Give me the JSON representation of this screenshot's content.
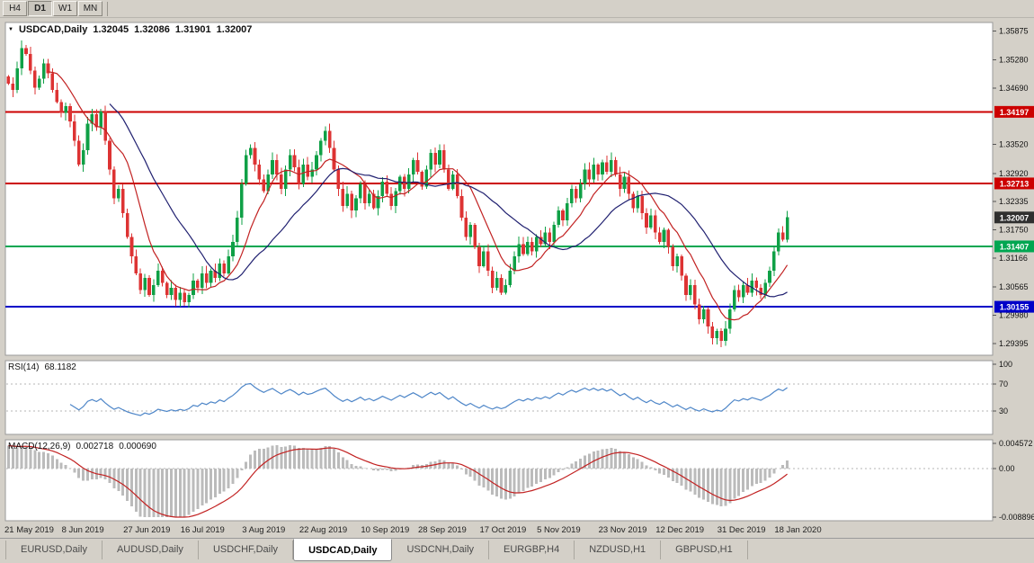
{
  "toolbar": {
    "buttons": [
      {
        "label": "H4",
        "active": false
      },
      {
        "label": "D1",
        "active": true
      },
      {
        "label": "W1",
        "active": false
      },
      {
        "label": "MN",
        "active": false
      }
    ]
  },
  "chart": {
    "symbol_title": "USDCAD,Daily",
    "quote": {
      "open": "1.32045",
      "high": "1.32086",
      "low": "1.31901",
      "close": "1.32007"
    }
  },
  "rsi_panel": {
    "name": "RSI(14)",
    "value": "68.1182"
  },
  "macd_panel": {
    "name": "MACD(12,26,9)",
    "value_main": "0.002718",
    "value_signal": "0.000690"
  },
  "tabs": [
    {
      "label": "EURUSD,Daily",
      "active": false
    },
    {
      "label": "AUDUSD,Daily",
      "active": false
    },
    {
      "label": "USDCHF,Daily",
      "active": false
    },
    {
      "label": "USDCAD,Daily",
      "active": true
    },
    {
      "label": "USDCNH,Daily",
      "active": false
    },
    {
      "label": "EURGBP,H4",
      "active": false
    },
    {
      "label": "NZDUSD,H1",
      "active": false
    },
    {
      "label": "GBPUSD,H1",
      "active": false
    }
  ],
  "chart_data": {
    "type": "candlestick",
    "symbol": "USDCAD",
    "timeframe": "Daily",
    "title": "USDCAD,Daily 1.32045 1.32086 1.31901 1.32007",
    "x_axis": {
      "labels": [
        "21 May 2019",
        "8 Jun 2019",
        "27 Jun 2019",
        "16 Jul 2019",
        "3 Aug 2019",
        "22 Aug 2019",
        "10 Sep 2019",
        "28 Sep 2019",
        "17 Oct 2019",
        "5 Nov 2019",
        "23 Nov 2019",
        "12 Dec 2019",
        "31 Dec 2019",
        "18 Jan 2020"
      ],
      "indices": [
        0,
        13,
        27,
        40,
        54,
        67,
        81,
        94,
        108,
        121,
        135,
        148,
        162,
        175
      ]
    },
    "price_axis": {
      "max": 1.3605,
      "min": 1.2915,
      "ticks": [
        "1.35875",
        "1.35280",
        "1.34690",
        "1.33520",
        "1.32920",
        "1.32335",
        "1.31750",
        "1.31166",
        "1.30565",
        "1.29980",
        "1.29395"
      ]
    },
    "levels": [
      {
        "label": "1.34197",
        "price": 1.34197,
        "color": "#cc0000",
        "type": "resistance"
      },
      {
        "label": "1.32713",
        "price": 1.32713,
        "color": "#cc0000",
        "type": "resistance"
      },
      {
        "label": "1.31407",
        "price": 1.31407,
        "color": "#00a651",
        "type": "support"
      },
      {
        "label": "1.30155",
        "price": 1.30155,
        "color": "#0000c8",
        "type": "support"
      }
    ],
    "current_price": {
      "label": "1.32007",
      "price": 1.32007,
      "box_color": "#2f2f2f"
    },
    "candles": {
      "count": 178,
      "plot_right": 878,
      "closes": [
        1.3478,
        1.3465,
        1.351,
        1.3552,
        1.354,
        1.3505,
        1.347,
        1.3488,
        1.352,
        1.35,
        1.3465,
        1.344,
        1.3418,
        1.3432,
        1.34,
        1.336,
        1.331,
        1.334,
        1.3395,
        1.3415,
        1.3388,
        1.342,
        1.336,
        1.33,
        1.324,
        1.326,
        1.321,
        1.316,
        1.312,
        1.3085,
        1.305,
        1.3075,
        1.304,
        1.306,
        1.309,
        1.3065,
        1.304,
        1.3055,
        1.303,
        1.3045,
        1.3025,
        1.304,
        1.307,
        1.3055,
        1.3085,
        1.3065,
        1.309,
        1.3075,
        1.3105,
        1.3085,
        1.312,
        1.315,
        1.32,
        1.327,
        1.333,
        1.3345,
        1.331,
        1.328,
        1.3255,
        1.329,
        1.332,
        1.329,
        1.326,
        1.33,
        1.333,
        1.3305,
        1.327,
        1.331,
        1.3285,
        1.33,
        1.333,
        1.336,
        1.338,
        1.3345,
        1.33,
        1.326,
        1.3225,
        1.325,
        1.3215,
        1.324,
        1.327,
        1.323,
        1.325,
        1.322,
        1.3245,
        1.3275,
        1.325,
        1.3225,
        1.3255,
        1.3285,
        1.326,
        1.329,
        1.332,
        1.3295,
        1.3265,
        1.33,
        1.3335,
        1.331,
        1.334,
        1.33,
        1.326,
        1.329,
        1.3245,
        1.32,
        1.316,
        1.3185,
        1.314,
        1.31,
        1.313,
        1.309,
        1.3055,
        1.3075,
        1.3045,
        1.306,
        1.309,
        1.312,
        1.3145,
        1.3125,
        1.315,
        1.313,
        1.316,
        1.3145,
        1.317,
        1.315,
        1.3185,
        1.3215,
        1.3195,
        1.323,
        1.326,
        1.324,
        1.327,
        1.33,
        1.328,
        1.331,
        1.329,
        1.3315,
        1.3295,
        1.332,
        1.329,
        1.326,
        1.3285,
        1.325,
        1.322,
        1.3245,
        1.321,
        1.318,
        1.3205,
        1.317,
        1.315,
        1.3175,
        1.314,
        1.31,
        1.312,
        1.308,
        1.304,
        1.306,
        1.302,
        1.299,
        1.301,
        1.2975,
        1.295,
        1.2965,
        1.2945,
        1.297,
        1.301,
        1.305,
        1.3035,
        1.306,
        1.3045,
        1.307,
        1.3055,
        1.304,
        1.3065,
        1.309,
        1.313,
        1.317,
        1.3155,
        1.3201
      ]
    },
    "moving_averages": [
      {
        "period": 10,
        "color": "#c22222",
        "name": "ma-fast"
      },
      {
        "period": 24,
        "color": "#202070",
        "name": "ma-slow"
      }
    ],
    "rsi": {
      "period": 14,
      "last_value": 68.1182,
      "color": "#4e86c8",
      "levels": [
        70,
        30
      ],
      "axis_labels": [
        {
          "text": "100",
          "value": 100
        },
        {
          "text": "70",
          "value": 70
        },
        {
          "text": "30",
          "value": 30
        }
      ]
    },
    "macd": {
      "fast": 12,
      "slow": 26,
      "signal": 9,
      "last_main": 0.002718,
      "last_signal": 0.00069,
      "hist_color": "#bbbbbb",
      "signal_color": "#c22222",
      "axis_labels": [
        {
          "text": "0.004572",
          "value": 0.004572
        },
        {
          "text": "0.00",
          "value": 0
        },
        {
          "text": "-0.008896",
          "value": -0.008896
        }
      ]
    },
    "colors": {
      "app_bg": "#d4d0c8",
      "panel_bg": "#ffffff",
      "up": "#0fa046",
      "down": "#dd3333",
      "grid_dash": "#b5b5b5",
      "axis_text": "#111111"
    }
  }
}
